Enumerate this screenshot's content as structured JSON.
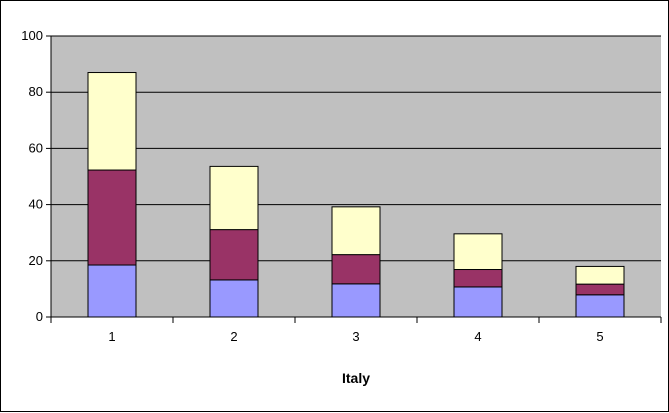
{
  "chart_data": {
    "type": "bar",
    "stacked": true,
    "categories": [
      "1",
      "2",
      "3",
      "4",
      "5"
    ],
    "series": [
      {
        "color": "#9999ff",
        "values": [
          18.5,
          13.2,
          11.8,
          10.7,
          7.9
        ]
      },
      {
        "color": "#993366",
        "values": [
          33.8,
          17.9,
          10.4,
          6.2,
          3.8
        ]
      },
      {
        "color": "#ffffcc",
        "values": [
          34.7,
          22.5,
          17.0,
          12.7,
          6.3
        ]
      }
    ],
    "title": "",
    "xlabel": "Italy",
    "ylabel": "",
    "ylim": [
      0,
      100
    ],
    "yticks": [
      "0",
      "20",
      "40",
      "60",
      "80",
      "100"
    ],
    "grid": true,
    "plot_background": "#c0c0c0",
    "legend": "none"
  }
}
